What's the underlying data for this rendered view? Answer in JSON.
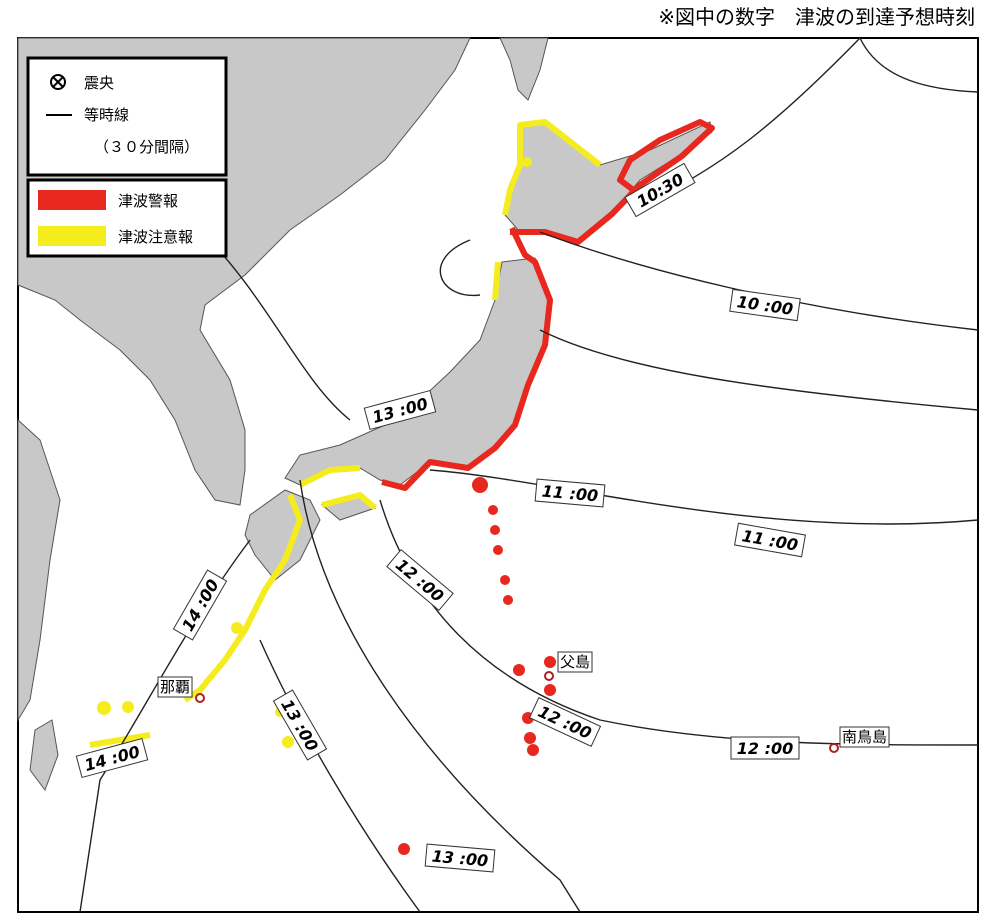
{
  "note": "※図中の数字　津波の到達予想時刻",
  "legend": {
    "epicenter": "震央",
    "isochrone": "等時線",
    "interval": "（３０分間隔）",
    "warning": "津波警報",
    "advisory": "津波注意報"
  },
  "isochrone_labels": [
    "10:30",
    "10 :00",
    "11 :00",
    "11 :00",
    "12 :00",
    "12 :00",
    "12 :00",
    "13 :00",
    "13 :00",
    "13 :00",
    "14 :00",
    "14 :00"
  ],
  "places": [
    "父島",
    "那覇",
    "南鳥島"
  ]
}
